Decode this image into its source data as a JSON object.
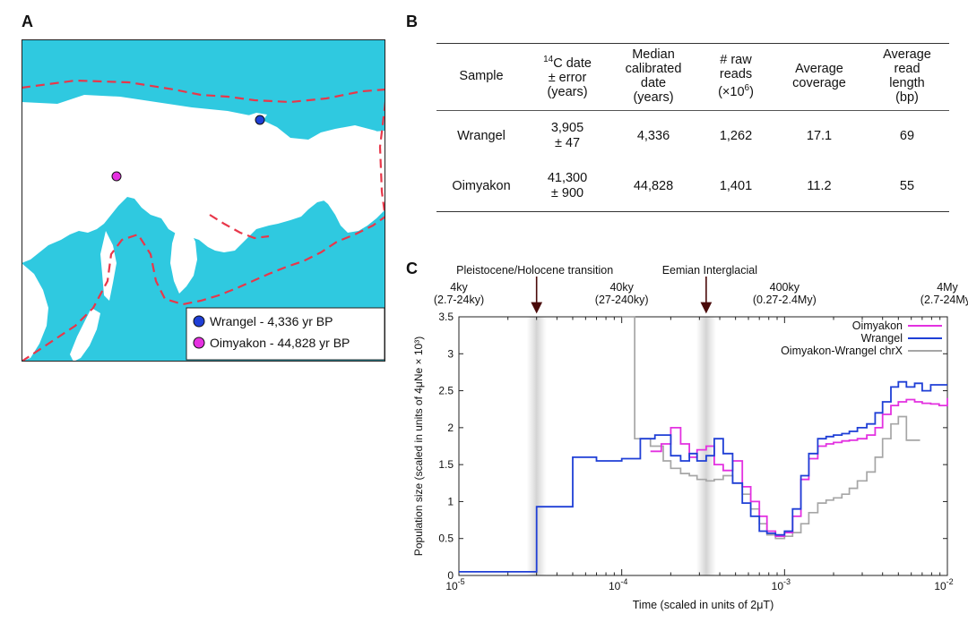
{
  "panels": {
    "a": "A",
    "b": "B",
    "c": "C"
  },
  "map": {
    "legend": [
      {
        "label": "Wrangel - 4,336 yr BP",
        "color": "#1f3fd6"
      },
      {
        "label": "Oimyakon - 44,828 yr BP",
        "color": "#e531e0"
      }
    ],
    "sea_color": "#2fc9e0",
    "border_color": "#e8374a"
  },
  "table": {
    "headers": [
      "Sample",
      "14C date\n± error\n(years)",
      "Median\ncalibrated\ndate\n(years)",
      "# raw\nreads\n(×106)",
      "Average\ncoverage",
      "Average\nread\nlength\n(bp)"
    ],
    "rows": [
      [
        "Wrangel",
        "3,905\n± 47",
        "4,336",
        "1,262",
        "17.1",
        "69"
      ],
      [
        "Oimyakon",
        "41,300\n± 900",
        "44,828",
        "1,401",
        "11.2",
        "55"
      ]
    ]
  },
  "chart_data": {
    "type": "line",
    "xscale": "log",
    "xlim": [
      1e-05,
      0.01
    ],
    "ylim": [
      0,
      3.5
    ],
    "xlabel": "Time (scaled in units of 2μT)",
    "ylabel": "Population size (scaled in units of 4μNe × 10³)",
    "x_tick_labels": [
      "10-5",
      "10-4",
      "10-3",
      "10-2"
    ],
    "y_ticks": [
      0,
      0.5,
      1,
      1.5,
      2,
      2.5,
      3,
      3.5
    ],
    "y_tick_labels": [
      "0",
      "0.5",
      "1",
      "1.5",
      "2",
      "2.5",
      "3",
      "3.5"
    ],
    "top_axis_labels": [
      {
        "label": "4ky\n(2.7-24ky)",
        "x": 1e-05
      },
      {
        "label": "40ky\n(27-240ky)",
        "x": 0.0001
      },
      {
        "label": "400ky\n(0.27-2.4My)",
        "x": 0.001
      },
      {
        "label": "4My\n(2.7-24My)",
        "x": 0.01
      }
    ],
    "annotations": [
      {
        "label": "Pleistocene/Holocene transition",
        "x": 3e-05
      },
      {
        "label": "Eemian Interglacial",
        "x": 0.00033
      }
    ],
    "series": [
      {
        "name": "Oimyakon",
        "color": "#e331e0",
        "x": [
          0.00015,
          0.000175,
          0.0002,
          0.00023,
          0.00026,
          0.00029,
          0.00033,
          0.00037,
          0.00042,
          0.00048,
          0.00055,
          0.00062,
          0.0007,
          0.00078,
          0.00088,
          0.001,
          0.00112,
          0.00126,
          0.00141,
          0.0016,
          0.0018,
          0.002,
          0.00225,
          0.0025,
          0.0028,
          0.0032,
          0.0036,
          0.004,
          0.0045,
          0.005,
          0.0056,
          0.0063,
          0.007,
          0.0079,
          0.0089,
          0.01
        ],
        "y": [
          1.68,
          1.78,
          2.0,
          1.78,
          1.6,
          1.7,
          1.75,
          1.5,
          1.42,
          1.55,
          1.2,
          1.0,
          0.8,
          0.6,
          0.53,
          0.58,
          0.8,
          1.3,
          1.58,
          1.75,
          1.78,
          1.8,
          1.82,
          1.83,
          1.85,
          1.9,
          2.0,
          2.18,
          2.3,
          2.35,
          2.38,
          2.35,
          2.33,
          2.32,
          2.3,
          2.4
        ]
      },
      {
        "name": "Wrangel",
        "color": "#1f3fd6",
        "x": [
          1e-05,
          3e-05,
          5e-05,
          7e-05,
          0.0001,
          0.00013,
          0.00016,
          0.0002,
          0.00023,
          0.00026,
          0.00029,
          0.00033,
          0.00037,
          0.00042,
          0.00048,
          0.00055,
          0.00062,
          0.0007,
          0.00078,
          0.00088,
          0.001,
          0.00112,
          0.00126,
          0.00141,
          0.0016,
          0.0018,
          0.002,
          0.00225,
          0.0025,
          0.0028,
          0.0032,
          0.0036,
          0.004,
          0.0045,
          0.005,
          0.0056,
          0.0063,
          0.007,
          0.0079,
          0.0089,
          0.01
        ],
        "y": [
          0.05,
          0.93,
          1.6,
          1.55,
          1.58,
          1.85,
          1.9,
          1.62,
          1.55,
          1.65,
          1.55,
          1.62,
          1.85,
          1.65,
          1.25,
          0.98,
          0.8,
          0.6,
          0.57,
          0.55,
          0.6,
          0.9,
          1.35,
          1.65,
          1.85,
          1.88,
          1.9,
          1.92,
          1.95,
          2.0,
          2.05,
          2.2,
          2.35,
          2.55,
          2.62,
          2.55,
          2.6,
          2.5,
          2.58,
          2.58,
          2.58
        ]
      },
      {
        "name": "Oimyakon-Wrangel chrX",
        "color": "#a6a6a6",
        "x": [
          0.0001,
          0.00012,
          0.00015,
          0.00018,
          0.0002,
          0.00023,
          0.00026,
          0.00029,
          0.00033,
          0.00037,
          0.00042,
          0.00048,
          0.00055,
          0.00062,
          0.0007,
          0.00078,
          0.00088,
          0.001,
          0.00112,
          0.00126,
          0.00141,
          0.0016,
          0.0018,
          0.002,
          0.00225,
          0.0025,
          0.0028,
          0.0032,
          0.0036,
          0.004,
          0.0045,
          0.005,
          0.0056,
          0.0063
        ],
        "y": [
          3.5,
          1.85,
          1.75,
          1.55,
          1.45,
          1.38,
          1.35,
          1.3,
          1.28,
          1.3,
          1.35,
          1.25,
          1.1,
          0.9,
          0.7,
          0.55,
          0.5,
          0.53,
          0.58,
          0.7,
          0.85,
          0.98,
          1.02,
          1.05,
          1.1,
          1.18,
          1.28,
          1.4,
          1.6,
          1.85,
          2.05,
          2.15,
          1.83,
          1.83
        ]
      }
    ]
  }
}
